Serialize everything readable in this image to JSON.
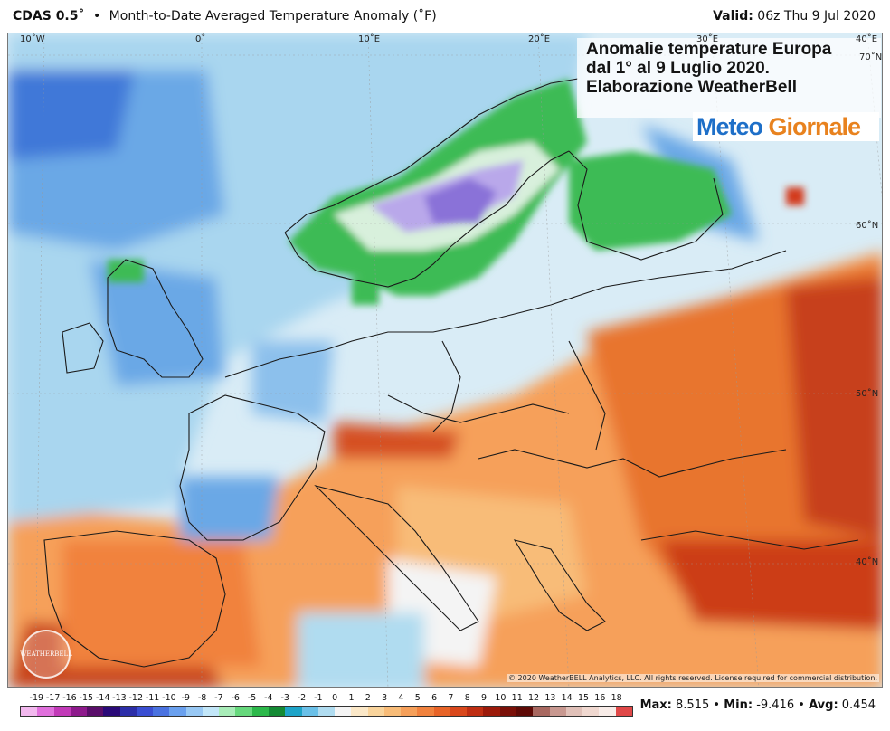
{
  "header": {
    "model": "CDAS 0.5˚",
    "bullet": "•",
    "description": "Month-to-Date Averaged Temperature Anomaly (˚F)",
    "valid_label": "Valid:",
    "valid_value": "06z Thu 9 Jul 2020"
  },
  "overlay": {
    "line1": "Anomalie temperature Europa",
    "line2": "dal 1° al 9 Luglio 2020.",
    "line3": "Elaborazione WeatherBell",
    "brand_part1": "Meteo",
    "brand_part2": "Giornale"
  },
  "map": {
    "longitude_labels": [
      "10˚W",
      "0˚",
      "10˚E",
      "20˚E",
      "30˚E",
      "40˚E"
    ],
    "latitude_labels": [
      "70˚N",
      "60˚N",
      "50˚N",
      "40˚N"
    ],
    "watermark": "WEATHERBELL",
    "copyright": "© 2020 WeatherBELL Analytics, LLC. All rights reserved. License required for commercial distribution."
  },
  "legend": {
    "ticks": [
      "-19",
      "-17",
      "-16",
      "-15",
      "-14",
      "-13",
      "-12",
      "-11",
      "-10",
      "-9",
      "-8",
      "-7",
      "-6",
      "-5",
      "-4",
      "-3",
      "-2",
      "-1",
      "0",
      "1",
      "2",
      "3",
      "4",
      "5",
      "6",
      "7",
      "8",
      "9",
      "10",
      "11",
      "12",
      "13",
      "14",
      "15",
      "16",
      "18"
    ],
    "colors": [
      "#f2b8ee",
      "#e070dc",
      "#c23ab8",
      "#8e1a8c",
      "#5a0e6a",
      "#2a0a78",
      "#2c2ea8",
      "#3a4ed2",
      "#4a72e0",
      "#6aa0ee",
      "#98c8f4",
      "#c2e6f8",
      "#a8ecb8",
      "#66d87c",
      "#2cb84a",
      "#148a34",
      "#1ea4c8",
      "#6ac0e8",
      "#b0dcf0",
      "#f4f4f4",
      "#fbe8c8",
      "#f9d49c",
      "#f8bc78",
      "#f6a05a",
      "#f1823e",
      "#e86428",
      "#d9481c",
      "#bf2e12",
      "#9c1a0a",
      "#7a1008",
      "#5e0a06",
      "#a86860",
      "#c89890",
      "#e0c0b8",
      "#f0d8d0",
      "#f8ece8",
      "#e04848"
    ]
  },
  "stats": {
    "max_label": "Max:",
    "max_value": "8.515",
    "min_label": "Min:",
    "min_value": "-9.416",
    "avg_label": "Avg:",
    "avg_value": "0.454",
    "bullet": "•"
  }
}
